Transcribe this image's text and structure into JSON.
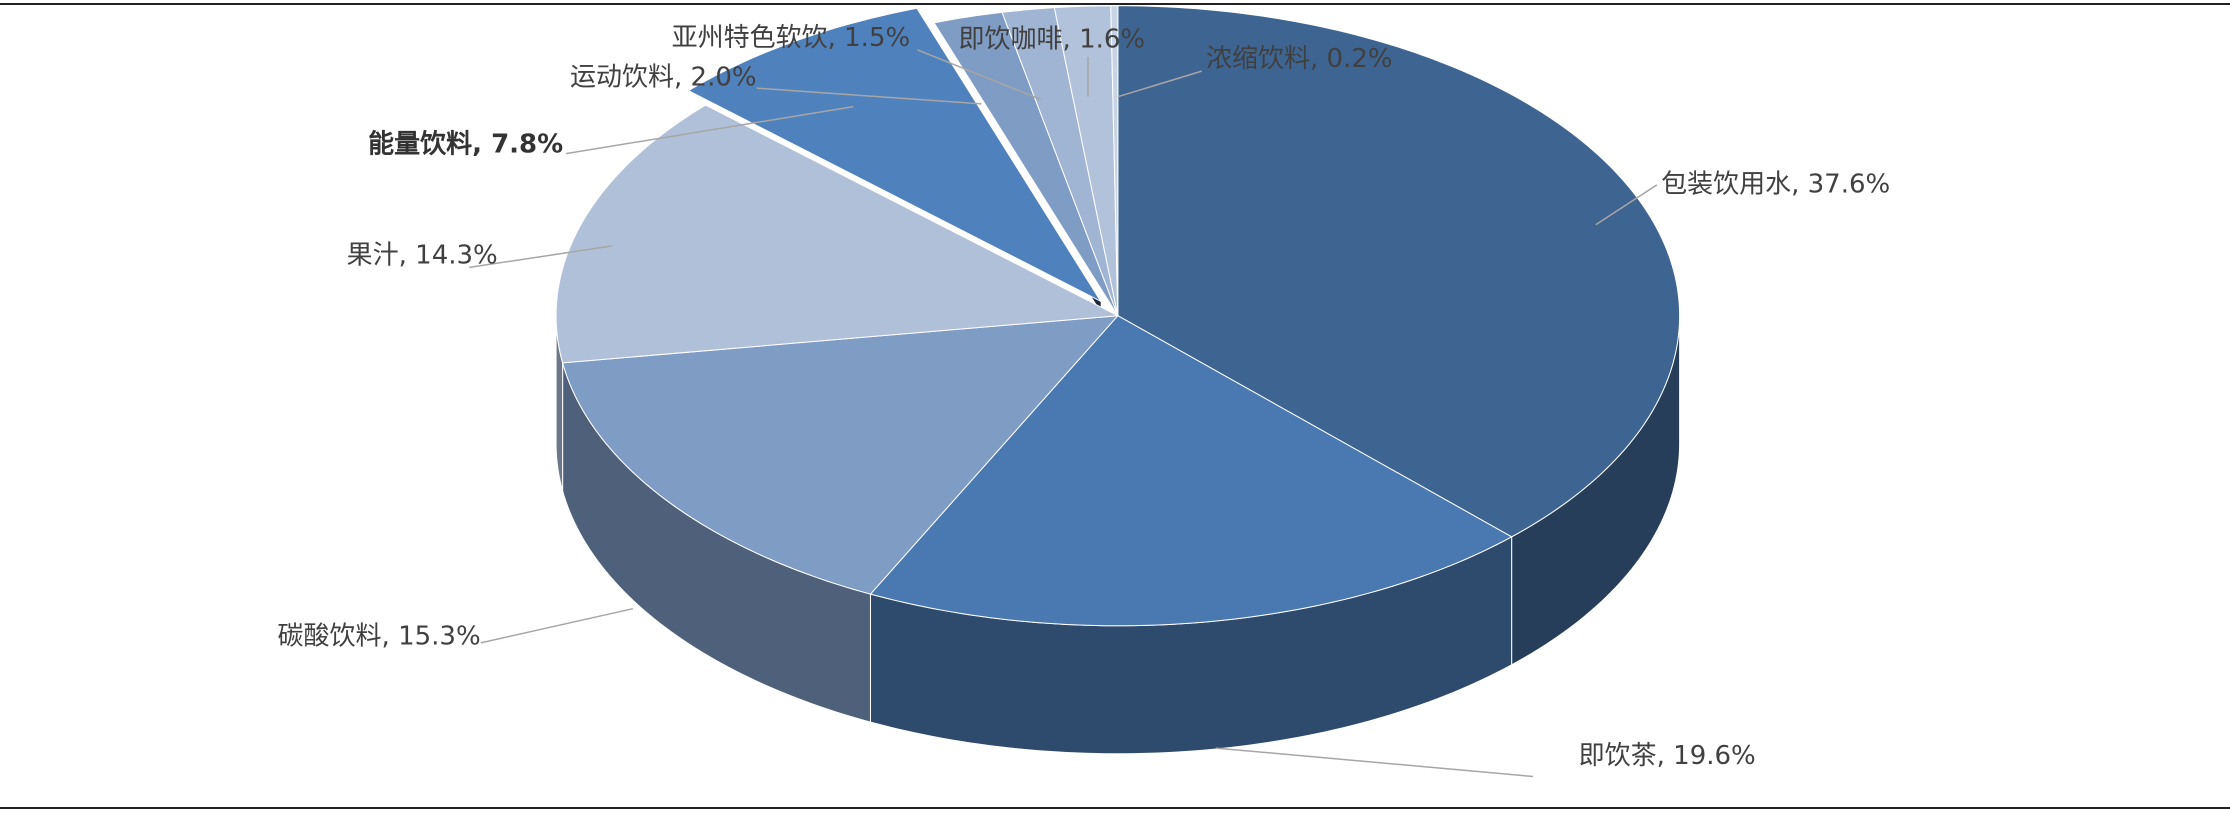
{
  "chart_data": {
    "type": "pie3d",
    "value_labels": [
      "包装饮用水, 37.6%",
      "即饮茶, 19.6%",
      "碳酸饮料, 15.3%",
      "果汁, 14.3%",
      "能量饮料, 7.8%",
      "运动饮料, 2.0%",
      "亚州特色软饮, 1.5%",
      "即饮咖啡, 1.6%",
      "浓缩饮料, 0.2%"
    ],
    "values": [
      37.6,
      19.6,
      15.3,
      14.3,
      7.8,
      2.0,
      1.5,
      1.6,
      0.2
    ],
    "colors": [
      "#3e6491",
      "#4a78b0",
      "#7f9cc4",
      "#b1c0d9",
      "#4f81bd",
      "#7f9cc4",
      "#a0b4d3",
      "#b3c2db",
      "#c8d3e5"
    ]
  }
}
